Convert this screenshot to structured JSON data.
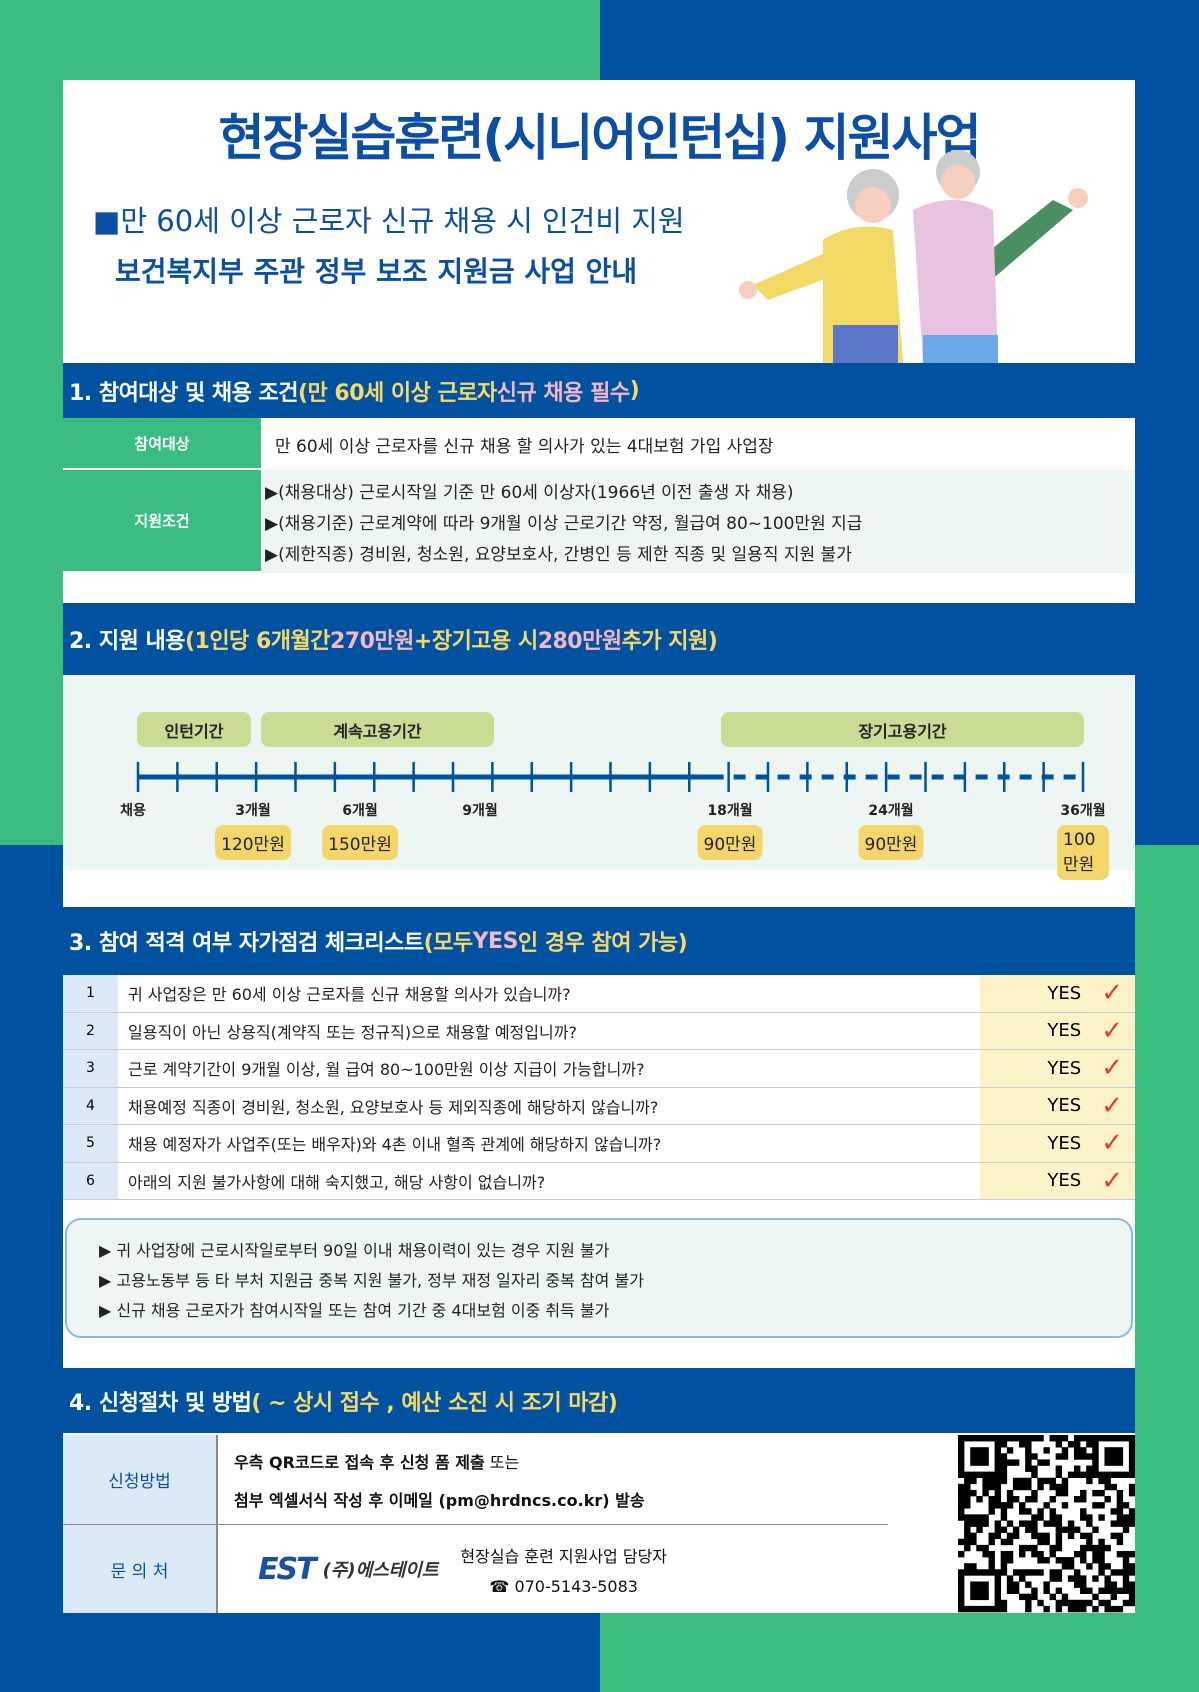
{
  "colors": {
    "blue": "#0051a0",
    "green": "#3bbd82",
    "yellow": "#f7d96a",
    "pink": "#f6b8c8"
  },
  "header": {
    "title": "현장실습훈련(시니어인턴십) 지원사업",
    "subtitle1": "■만 60세 이상 근로자 신규 채용 시 인건비 지원",
    "subtitle2": "보건복지부 주관 정부 보조 지원금 사업 안내"
  },
  "s1": {
    "title": "1. 참여대상 및 채용 조건 ",
    "h1": "(만 60세 이상 근로자 ",
    "h2": "신규 채용 필수",
    "h3": ")",
    "rows": [
      {
        "label": "참여대상",
        "lines": [
          "만 60세 이상 근로자를 신규 채용 할 의사가 있는 4대보험 가입 사업장"
        ]
      },
      {
        "label": "지원조건",
        "lines": [
          "▶(채용대상) 근로시작일 기준 만 60세 이상자(1966년 이전 출생 자 채용)",
          "▶(채용기준) 근로계약에 따라 9개월 이상 근로기간 약정, 월급여 80~100만원 지급",
          "▶(제한직종) 경비원, 청소원, 요양보호사, 간병인 등 제한 직종 및 일용직 지원 불가"
        ]
      }
    ]
  },
  "s2": {
    "title": "2. 지원 내용 ",
    "h1": "(1인당 6개월간 ",
    "h2": "270만원",
    "h3": " +장기고용 시 ",
    "h4": "280만원",
    "h5": " 추가 지원)",
    "periods": [
      "인턴기간",
      "계속고용기간",
      "장기고용기간"
    ],
    "months": [
      "채용",
      "3개월",
      "6개월",
      "9개월",
      "18개월",
      "24개월",
      "36개월"
    ],
    "amounts": [
      "120만원",
      "150만원",
      "90만원",
      "90만원",
      "100만원"
    ]
  },
  "s3": {
    "title": "3. 참여 적격 여부 자가점검 체크리스트 ",
    "h1": "(모두 ",
    "h2": "YES",
    "h3": "인 경우 참여 가능)",
    "items": [
      {
        "n": "1",
        "q": "귀 사업장은 만 60세 이상 근로자를 신규 채용할 의사가 있습니까?",
        "a": "YES"
      },
      {
        "n": "2",
        "q": "일용직이 아닌 상용직(계약직 또는 정규직)으로 채용할 예정입니까?",
        "a": "YES"
      },
      {
        "n": "3",
        "q": "근로 계약기간이 9개월 이상, 월 급여 80~100만원 이상 지급이 가능합니까?",
        "a": "YES"
      },
      {
        "n": "4",
        "q": "채용예정 직종이 경비원, 청소원, 요양보호사 등 제외직종에 해당하지 않습니까?",
        "a": "YES"
      },
      {
        "n": "5",
        "q": "채용 예정자가 사업주(또는 배우자)와 4촌 이내 혈족 관계에 해당하지 않습니까?",
        "a": "YES"
      },
      {
        "n": "6",
        "q": "아래의 지원 불가사항에 대해 숙지했고, 해당 사항이 없습니까?",
        "a": "YES"
      }
    ],
    "check": "✓",
    "notes": [
      "▶ 귀 사업장에 근로시작일로부터 90일 이내 채용이력이 있는 경우 지원 불가",
      "▶ 고용노동부 등 타 부처 지원금 중복 지원 불가, 정부 재정 일자리 중복 참여 불가",
      "▶ 신규 채용 근로자가 참여시작일 또는 참여 기간 중 4대보험 이중 취득 불가"
    ]
  },
  "s4": {
    "title": "4. 신청절차 및 방법 ",
    "h1": "( ~ 상시 접수 ,  예산 소진 시  조기 마감)",
    "method_label": "신청방법",
    "method1": "우측 QR코드로 접속 후 신청 폼 제출",
    "method1b": " 또는",
    "method2": "첨부 엑셀서식 작성 후 이메일 (pm@hrdncs.co.kr) 발송",
    "contact_label": "문 의 처",
    "logo": "EST",
    "company": "(주)에스테이트",
    "contact_person": "현장실습 훈련 지원사업 담당자",
    "phone": "☎ 070-5143-5083"
  }
}
